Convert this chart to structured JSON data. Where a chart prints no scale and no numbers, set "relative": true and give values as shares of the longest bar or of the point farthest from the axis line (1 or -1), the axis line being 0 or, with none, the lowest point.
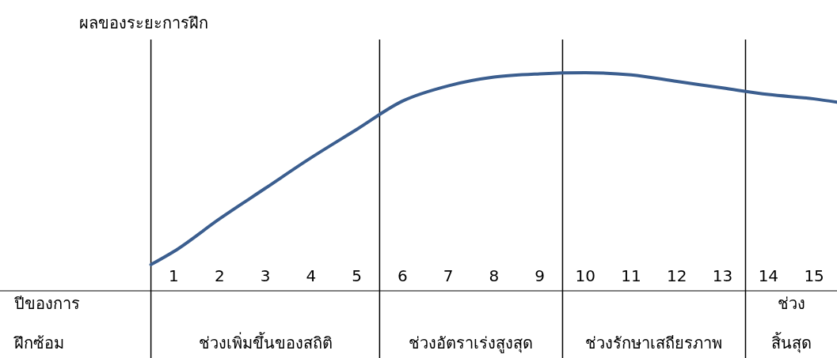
{
  "chart_data": {
    "type": "line",
    "relative": true,
    "ylabel": "ผลของระยะการฝึก",
    "xlabel": "ปีของการ\nฝึกซ้อม",
    "x": [
      0.5,
      1,
      2,
      3,
      4,
      5,
      6,
      7,
      8,
      9,
      10,
      11,
      12,
      13,
      14,
      15,
      15.5
    ],
    "xlim": [
      -2.8,
      15.5
    ],
    "xticks": [
      1,
      2,
      3,
      4,
      5,
      6,
      7,
      8,
      9,
      10,
      11,
      12,
      13,
      14,
      15
    ],
    "series": [
      {
        "color": "#3b5e8f",
        "values": [
          0.12,
          0.18,
          0.33,
          0.47,
          0.61,
          0.74,
          0.87,
          0.94,
          0.98,
          0.995,
          1,
          0.99,
          0.96,
          0.93,
          0.9,
          0.88,
          0.865
        ]
      }
    ],
    "ref_lines": [
      {
        "axis": "x",
        "value": 0.5
      },
      {
        "axis": "x",
        "value": 5.5
      },
      {
        "axis": "x",
        "value": 9.5
      },
      {
        "axis": "x",
        "value": 13.5
      }
    ],
    "annotations": [
      "ช่วงเพิ่มขึ้นของสถิติ",
      "ช่วงอัตราเร่งสูงสุด",
      "ช่วงรักษาเสถียรภาพ",
      "ช่วง\nสิ้นสุด"
    ]
  }
}
